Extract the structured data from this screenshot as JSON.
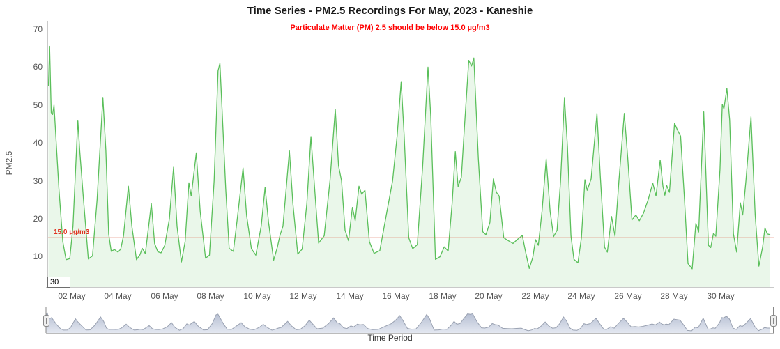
{
  "chart_data": {
    "type": "area",
    "title": "Time Series - PM2.5 Recordings For May, 2023 - Kaneshie",
    "subtitle": "Particulate Matter (PM) 2.5 should be below 15.0 µg/m3",
    "xlabel": "Time Period",
    "ylabel": "PM2.5",
    "legend": "none",
    "grid": false,
    "x_unit": "days since 01 May 2023 00:00",
    "x_range": [
      0,
      31.3
    ],
    "y_range": [
      2,
      72.2
    ],
    "y_ticks": [
      10,
      20,
      30,
      40,
      50,
      60,
      70
    ],
    "x_ticks": [
      {
        "day": 1,
        "label": "02 May"
      },
      {
        "day": 3,
        "label": "04 May"
      },
      {
        "day": 5,
        "label": "06 May"
      },
      {
        "day": 7,
        "label": "08 May"
      },
      {
        "day": 9,
        "label": "10 May"
      },
      {
        "day": 11,
        "label": "12 May"
      },
      {
        "day": 13,
        "label": "14 May"
      },
      {
        "day": 15,
        "label": "16 May"
      },
      {
        "day": 17,
        "label": "18 May"
      },
      {
        "day": 19,
        "label": "20 May"
      },
      {
        "day": 21,
        "label": "22 May"
      },
      {
        "day": 23,
        "label": "24 May"
      },
      {
        "day": 25,
        "label": "26 May"
      },
      {
        "day": 27,
        "label": "28 May"
      },
      {
        "day": 29,
        "label": "30 May"
      }
    ],
    "threshold": {
      "value": 15.0,
      "label": "15.0 µg/m3",
      "line_color": "#dd6a52",
      "label_color": "#e0301e"
    },
    "corner_badge": "30",
    "series": [
      {
        "name": "PM2.5",
        "color": "#5abf5a",
        "fill": "rgba(90,191,90,0.13)",
        "points": [
          [
            0,
            55
          ],
          [
            0.05,
            65.5
          ],
          [
            0.12,
            48
          ],
          [
            0.18,
            47.5
          ],
          [
            0.24,
            50
          ],
          [
            0.45,
            28
          ],
          [
            0.62,
            14
          ],
          [
            0.76,
            9.2
          ],
          [
            0.92,
            9.5
          ],
          [
            1.06,
            18
          ],
          [
            1.27,
            46
          ],
          [
            1.35,
            38
          ],
          [
            1.5,
            26
          ],
          [
            1.72,
            9.4
          ],
          [
            1.9,
            10.2
          ],
          [
            2.1,
            25
          ],
          [
            2.35,
            52
          ],
          [
            2.48,
            38
          ],
          [
            2.6,
            16
          ],
          [
            2.71,
            11.4
          ],
          [
            2.85,
            11.9
          ],
          [
            3,
            11.2
          ],
          [
            3.12,
            12
          ],
          [
            3.24,
            15.5
          ],
          [
            3.45,
            28.6
          ],
          [
            3.6,
            18
          ],
          [
            3.8,
            9.2
          ],
          [
            3.95,
            10.5
          ],
          [
            4.05,
            12.2
          ],
          [
            4.18,
            10.8
          ],
          [
            4.44,
            24
          ],
          [
            4.58,
            13.5
          ],
          [
            4.72,
            11.3
          ],
          [
            4.86,
            11
          ],
          [
            5.02,
            13
          ],
          [
            5.22,
            20
          ],
          [
            5.4,
            33.6
          ],
          [
            5.55,
            18
          ],
          [
            5.74,
            8.6
          ],
          [
            5.9,
            14
          ],
          [
            6.06,
            29.5
          ],
          [
            6.16,
            26
          ],
          [
            6.38,
            37.4
          ],
          [
            6.55,
            22
          ],
          [
            6.78,
            9.6
          ],
          [
            6.95,
            10.4
          ],
          [
            7.15,
            30
          ],
          [
            7.32,
            59
          ],
          [
            7.4,
            61
          ],
          [
            7.5,
            48
          ],
          [
            7.65,
            28
          ],
          [
            7.8,
            12.2
          ],
          [
            7.98,
            11.4
          ],
          [
            8.15,
            20
          ],
          [
            8.4,
            33.4
          ],
          [
            8.55,
            21
          ],
          [
            8.76,
            12.1
          ],
          [
            8.95,
            10.4
          ],
          [
            9.18,
            18
          ],
          [
            9.35,
            28.3
          ],
          [
            9.5,
            19
          ],
          [
            9.72,
            9.1
          ],
          [
            9.88,
            12.5
          ],
          [
            10,
            15.8
          ],
          [
            10.12,
            18
          ],
          [
            10.4,
            37.9
          ],
          [
            10.55,
            24
          ],
          [
            10.76,
            10.7
          ],
          [
            10.95,
            12
          ],
          [
            11.15,
            24
          ],
          [
            11.33,
            41.7
          ],
          [
            11.5,
            27
          ],
          [
            11.66,
            13.6
          ],
          [
            11.9,
            15.5
          ],
          [
            12.15,
            30
          ],
          [
            12.38,
            48.9
          ],
          [
            12.52,
            34
          ],
          [
            12.65,
            30
          ],
          [
            12.8,
            17
          ],
          [
            12.95,
            14.2
          ],
          [
            13.12,
            23
          ],
          [
            13.24,
            19.5
          ],
          [
            13.4,
            28.6
          ],
          [
            13.52,
            26.5
          ],
          [
            13.66,
            27.5
          ],
          [
            13.85,
            14
          ],
          [
            14.05,
            10.9
          ],
          [
            14.3,
            11.6
          ],
          [
            14.55,
            20
          ],
          [
            14.85,
            30
          ],
          [
            15.05,
            42
          ],
          [
            15.22,
            56.2
          ],
          [
            15.35,
            42
          ],
          [
            15.55,
            15
          ],
          [
            15.72,
            12.1
          ],
          [
            15.92,
            13.2
          ],
          [
            16.15,
            34
          ],
          [
            16.38,
            60
          ],
          [
            16.5,
            47
          ],
          [
            16.7,
            9.3
          ],
          [
            16.9,
            10
          ],
          [
            17.08,
            12.6
          ],
          [
            17.25,
            11.5
          ],
          [
            17.42,
            24
          ],
          [
            17.56,
            37.7
          ],
          [
            17.68,
            28.5
          ],
          [
            17.82,
            31
          ],
          [
            17.95,
            44
          ],
          [
            18.14,
            61.8
          ],
          [
            18.26,
            60.3
          ],
          [
            18.36,
            62.4
          ],
          [
            18.55,
            36
          ],
          [
            18.74,
            16.6
          ],
          [
            18.88,
            15.8
          ],
          [
            19.05,
            19
          ],
          [
            19.2,
            30.5
          ],
          [
            19.33,
            27
          ],
          [
            19.45,
            26
          ],
          [
            19.65,
            15
          ],
          [
            19.85,
            14.2
          ],
          [
            20.05,
            13.5
          ],
          [
            20.25,
            14.6
          ],
          [
            20.45,
            15.6
          ],
          [
            20.6,
            11
          ],
          [
            20.75,
            6.9
          ],
          [
            20.9,
            9.8
          ],
          [
            21.02,
            14.5
          ],
          [
            21.14,
            13
          ],
          [
            21.3,
            22
          ],
          [
            21.48,
            35.8
          ],
          [
            21.65,
            22
          ],
          [
            21.8,
            15.3
          ],
          [
            21.95,
            17
          ],
          [
            22.1,
            30
          ],
          [
            22.27,
            52
          ],
          [
            22.4,
            39
          ],
          [
            22.55,
            15.5
          ],
          [
            22.68,
            9.3
          ],
          [
            22.85,
            8.4
          ],
          [
            23,
            15
          ],
          [
            23.15,
            30.3
          ],
          [
            23.25,
            27.5
          ],
          [
            23.42,
            30.5
          ],
          [
            23.67,
            47.8
          ],
          [
            23.82,
            31
          ],
          [
            24,
            12.5
          ],
          [
            24.12,
            11.2
          ],
          [
            24.3,
            20.6
          ],
          [
            24.45,
            15.4
          ],
          [
            24.62,
            30
          ],
          [
            24.85,
            47.8
          ],
          [
            25,
            36
          ],
          [
            25.18,
            19.7
          ],
          [
            25.35,
            21
          ],
          [
            25.5,
            19.5
          ],
          [
            25.68,
            21.5
          ],
          [
            25.88,
            25
          ],
          [
            26.08,
            29.4
          ],
          [
            26.22,
            26
          ],
          [
            26.4,
            35.5
          ],
          [
            26.52,
            28.5
          ],
          [
            26.6,
            26.2
          ],
          [
            26.68,
            28.8
          ],
          [
            26.8,
            27
          ],
          [
            27.02,
            45.2
          ],
          [
            27.14,
            43.5
          ],
          [
            27.28,
            41.8
          ],
          [
            27.45,
            25
          ],
          [
            27.6,
            8.2
          ],
          [
            27.78,
            6.8
          ],
          [
            27.94,
            18.8
          ],
          [
            28.06,
            16.5
          ],
          [
            28.28,
            48.2
          ],
          [
            28.48,
            13
          ],
          [
            28.58,
            12.4
          ],
          [
            28.7,
            16.2
          ],
          [
            28.8,
            15.4
          ],
          [
            28.98,
            33
          ],
          [
            29.08,
            50.2
          ],
          [
            29.15,
            49
          ],
          [
            29.28,
            54.4
          ],
          [
            29.4,
            46
          ],
          [
            29.56,
            16
          ],
          [
            29.7,
            11.2
          ],
          [
            29.86,
            24.2
          ],
          [
            29.96,
            21
          ],
          [
            30.1,
            30
          ],
          [
            30.32,
            46.9
          ],
          [
            30.5,
            21
          ],
          [
            30.66,
            7.5
          ],
          [
            30.82,
            12.5
          ],
          [
            30.92,
            17.6
          ],
          [
            31.02,
            16
          ],
          [
            31.15,
            15.8
          ]
        ]
      }
    ],
    "navigator": {
      "present": true,
      "line_color": "#99a1b1",
      "fill_top": "#b4bdd1",
      "fill_bottom": "#e4e8f1",
      "handle_fill": "#efefef",
      "handle_stroke": "#888888",
      "axis_color": "#bbbbbb"
    },
    "axis_line_color": "#c9c9c9"
  }
}
